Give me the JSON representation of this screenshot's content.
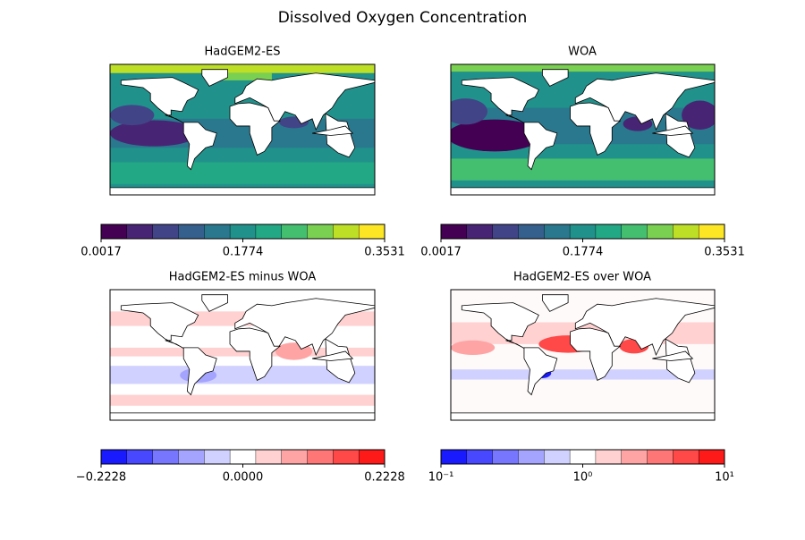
{
  "title": "Dissolved Oxygen Concentration",
  "chart_data": [
    {
      "type": "map",
      "title": "HadGEM2-ES",
      "colorbar": {
        "clim": [
          0.0017,
          0.3531
        ],
        "log": false,
        "colors": [
          "#440154",
          "#482475",
          "#414487",
          "#355f8d",
          "#2a788e",
          "#21918c",
          "#22a884",
          "#44bf70",
          "#7ad151",
          "#bddf26",
          "#fde725"
        ],
        "ticks": [
          0.0017,
          0.1774,
          0.3531
        ]
      }
    },
    {
      "type": "map",
      "title": "WOA",
      "colorbar": {
        "clim": [
          0.0017,
          0.3531
        ],
        "log": false,
        "colors": [
          "#440154",
          "#482475",
          "#414487",
          "#355f8d",
          "#2a788e",
          "#21918c",
          "#22a884",
          "#44bf70",
          "#7ad151",
          "#bddf26",
          "#fde725"
        ],
        "ticks": [
          0.0017,
          0.1774,
          0.3531
        ]
      }
    },
    {
      "type": "map",
      "title": "HadGEM2-ES minus WOA",
      "colorbar": {
        "clim": [
          -0.2228,
          0.2228
        ],
        "log": false,
        "colors": [
          "#1a1aff",
          "#4848ff",
          "#7676ff",
          "#a4a4ff",
          "#d1d1ff",
          "#ffffff",
          "#ffd1d1",
          "#ffa4a4",
          "#ff7676",
          "#ff4848",
          "#ff1a1a"
        ],
        "ticks": [
          {
            "value": -0.2228,
            "label": "−0.2228"
          },
          {
            "value": 0,
            "label": "0.0000"
          },
          0.2228
        ]
      }
    },
    {
      "type": "map",
      "title": "HadGEM2-ES over WOA",
      "colorbar": {
        "clim": [
          0.1,
          10
        ],
        "log": true,
        "colors": [
          "#1a1aff",
          "#4848ff",
          "#7676ff",
          "#a4a4ff",
          "#d1d1ff",
          "#ffffff",
          "#ffd1d1",
          "#ffa4a4",
          "#ff7676",
          "#ff4848",
          "#ff1a1a"
        ],
        "ticks": [
          {
            "value": 0.1,
            "label": "10⁻¹"
          },
          {
            "value": 1,
            "label": "10⁰"
          },
          {
            "value": 10,
            "label": "10¹"
          }
        ]
      }
    }
  ]
}
